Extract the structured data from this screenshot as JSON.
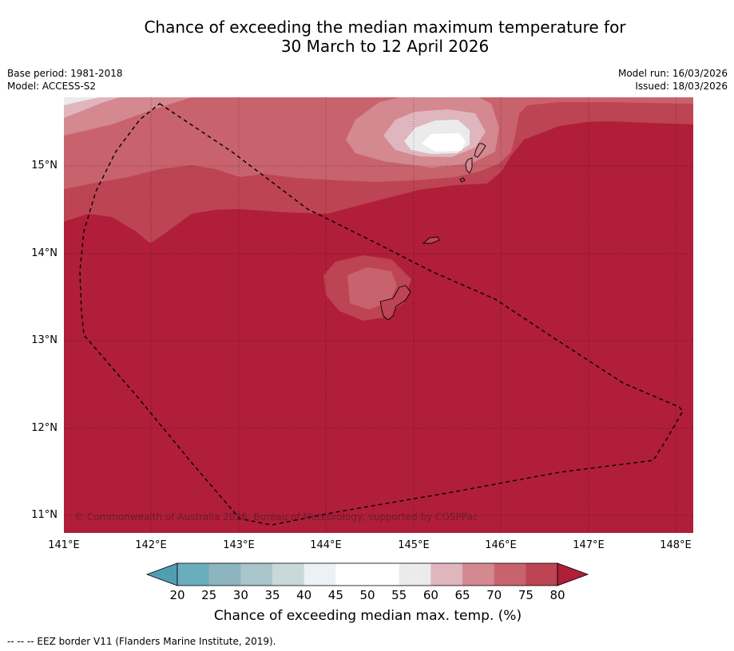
{
  "title": {
    "line1": "Chance of exceeding the median maximum temperature for",
    "line2": "30 March to 12 April 2026"
  },
  "meta_left": {
    "base_period": "Base period: 1981-2018",
    "model": "Model: ACCESS-S2"
  },
  "meta_right": {
    "model_run": "Model run: 16/03/2026",
    "issued": "Issued: 18/03/2026"
  },
  "map": {
    "lat_labels": [
      "15°N",
      "14°N",
      "13°N",
      "12°N",
      "11°N"
    ],
    "lon_labels": [
      "141°E",
      "142°E",
      "143°E",
      "144°E",
      "145°E",
      "146°E",
      "147°E",
      "148°E"
    ],
    "copyright": "© Commonwealth of Australia 2026, Bureau of Meteorology, supported by COSPPac",
    "islands": [
      "Guam",
      "Rota",
      "Tinian",
      "Saipan",
      "Aguijan"
    ]
  },
  "colorbar": {
    "ticks": [
      "20",
      "25",
      "30",
      "35",
      "40",
      "45",
      "50",
      "55",
      "60",
      "65",
      "70",
      "75",
      "80"
    ],
    "colors": [
      "#4f9fb0",
      "#6aaebd",
      "#8db5c0",
      "#a8c5ca",
      "#c9d9da",
      "#ecf2f3",
      "#ffffff",
      "#ffffff",
      "#ebebeb",
      "#dfb6bd",
      "#d4888f",
      "#c8636e",
      "#bd4452",
      "#b01e3a"
    ],
    "label": "Chance of exceeding median max. temp. (%)"
  },
  "footnote": "--  --  -- EEZ border V11 (Flanders Marine Institute, 2019)."
}
